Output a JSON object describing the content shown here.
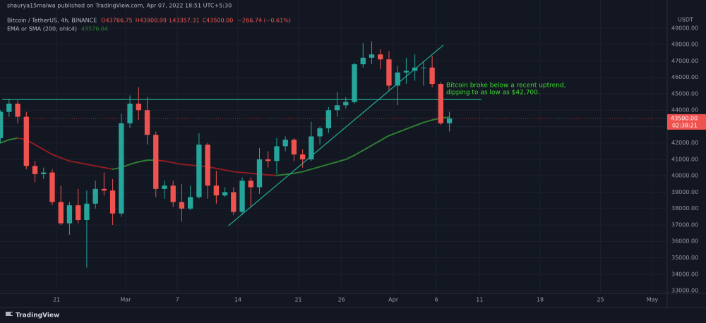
{
  "header": {
    "published": "shaurya15malwa published on TradingView.com, Apr 07, 2022 18:51 UTC+5:30",
    "symbol": "Bitcoin / TetherUS, 4h, BINANCE",
    "ohlc_labels": [
      "O43766.75",
      "H43900.99",
      "L43357.31",
      "C43500.00"
    ],
    "change": "−266.74 (−0.61%)"
  },
  "footer": {
    "brand": "TradingView"
  },
  "chart_data": {
    "type": "candlestick",
    "x": [
      45.5,
      46.5,
      47.5,
      48.5,
      49.5,
      50.5,
      51.5,
      52.5,
      53.5,
      54.5,
      55.5,
      56.5,
      57.5,
      58.5,
      59.5,
      60.5,
      61.5,
      62.5,
      63.5,
      64.5,
      65.5,
      66.5,
      67.5,
      68.5,
      69.5,
      70.5,
      71.5,
      72.5,
      73.5,
      74.5,
      75.5,
      76.5,
      77.5,
      78.5,
      79.5,
      80.5,
      81.5,
      82.5,
      83.5,
      84.5,
      85.5,
      86.5,
      87.5,
      88.5,
      89.5,
      90.5,
      91.5,
      92.5,
      93.5,
      94.5,
      95.5,
      96.5,
      97.5
    ],
    "open": [
      42300,
      43900,
      44400,
      43600,
      40600,
      40100,
      40200,
      38400,
      37100,
      38200,
      37300,
      38300,
      39200,
      39100,
      37700,
      43200,
      44400,
      44000,
      42500,
      39200,
      39400,
      38400,
      38000,
      38700,
      41900,
      39400,
      38800,
      39000,
      37800,
      39700,
      39300,
      41000,
      40900,
      41800,
      42200,
      41300,
      41000,
      42400,
      42900,
      44000,
      44300,
      44500,
      46800,
      47200,
      47400,
      47100,
      45500,
      46300,
      46400,
      46600,
      46600,
      45600,
      43200
    ],
    "high": [
      44000,
      44700,
      44600,
      43900,
      40900,
      40500,
      40400,
      39400,
      38400,
      39200,
      39100,
      39700,
      40200,
      39800,
      43800,
      44900,
      45400,
      44800,
      42700,
      39700,
      39700,
      39500,
      39400,
      42600,
      42000,
      40300,
      39300,
      39300,
      39900,
      39900,
      41700,
      41500,
      42300,
      42400,
      42300,
      41600,
      43300,
      43000,
      44200,
      45100,
      44800,
      46900,
      48100,
      48200,
      47700,
      47600,
      46700,
      47200,
      47400,
      47000,
      47300,
      45700,
      43900
    ],
    "low": [
      42000,
      43600,
      43200,
      40400,
      39600,
      39800,
      38200,
      37000,
      36400,
      37100,
      34400,
      38000,
      38800,
      37000,
      37500,
      42900,
      43400,
      41900,
      38700,
      38600,
      38100,
      37200,
      37900,
      38600,
      38600,
      38300,
      38700,
      37600,
      37600,
      38100,
      38900,
      40500,
      40100,
      41500,
      40900,
      40500,
      40900,
      41900,
      42600,
      43600,
      44100,
      44400,
      46600,
      46800,
      46500,
      45200,
      44300,
      45600,
      45800,
      45500,
      45400,
      43100,
      42700
    ],
    "close": [
      43900,
      44400,
      43600,
      40600,
      40100,
      40200,
      38400,
      37100,
      38200,
      37300,
      38300,
      39200,
      39100,
      37700,
      43200,
      44400,
      44000,
      42500,
      39200,
      39400,
      38400,
      38000,
      38700,
      41900,
      39400,
      38800,
      39000,
      37800,
      39700,
      39300,
      41000,
      40900,
      41800,
      42200,
      41300,
      41000,
      42400,
      42900,
      44000,
      44300,
      44500,
      46800,
      47200,
      47400,
      47100,
      45500,
      46300,
      46400,
      46600,
      46600,
      45600,
      43200,
      43500
    ],
    "up_color": "#26a69a",
    "down_color": "#ef5350",
    "ma": {
      "name": "EMA or SMA (200, ohlc4)",
      "value_label": "43576.64",
      "up_color": "#2e7d32",
      "down_color": "#8e1c22",
      "values": [
        42000,
        42200,
        42300,
        42200,
        41900,
        41600,
        41300,
        41100,
        40900,
        40800,
        40700,
        40600,
        40500,
        40400,
        40500,
        40700,
        40850,
        40950,
        40950,
        40900,
        40800,
        40700,
        40650,
        40600,
        40550,
        40450,
        40350,
        40250,
        40200,
        40150,
        40100,
        40050,
        40020,
        40080,
        40150,
        40250,
        40400,
        40550,
        40700,
        40850,
        41000,
        41250,
        41550,
        41850,
        42150,
        42450,
        42650,
        42850,
        43050,
        43250,
        43400,
        43520,
        43580
      ]
    },
    "hline": {
      "value": 44650,
      "x": [
        45.7,
        101.2
      ],
      "color": "#22ab94"
    },
    "trendline": {
      "x": [
        71.9,
        96.8
      ],
      "y": [
        36950,
        47970
      ],
      "color": "#22ab94"
    },
    "annotation": {
      "lines": [
        "Bitcoin broke below a recent uptrend,",
        "dipping to as low as $42,700."
      ],
      "color": "#3ddc2f"
    },
    "last_price": {
      "value": 43500,
      "label": "43500.00",
      "countdown": "02:38:21",
      "color": "#ef5350"
    },
    "y_unit": "USDT",
    "grid": true,
    "xlim": [
      45.45,
      122.72
    ],
    "ylim": [
      32828,
      50720
    ],
    "xticks": [
      {
        "value": 52,
        "label": "21"
      },
      {
        "value": 60,
        "label": "Mar"
      },
      {
        "value": 66,
        "label": "7"
      },
      {
        "value": 73,
        "label": "14"
      },
      {
        "value": 80,
        "label": "21"
      },
      {
        "value": 85,
        "label": "26"
      },
      {
        "value": 91,
        "label": "Apr"
      },
      {
        "value": 96,
        "label": "6"
      },
      {
        "value": 101,
        "label": "11"
      },
      {
        "value": 108,
        "label": "18"
      },
      {
        "value": 115,
        "label": "25"
      },
      {
        "value": 121,
        "label": "May"
      }
    ],
    "yticks": [
      {
        "value": 33000,
        "label": "33000.00"
      },
      {
        "value": 34000,
        "label": "34000.00"
      },
      {
        "value": 35000,
        "label": "35000.00"
      },
      {
        "value": 36000,
        "label": "36000.00"
      },
      {
        "value": 37000,
        "label": "37000.00"
      },
      {
        "value": 38000,
        "label": "38000.00"
      },
      {
        "value": 39000,
        "label": "39000.00"
      },
      {
        "value": 40000,
        "label": "40000.00"
      },
      {
        "value": 41000,
        "label": "41000.00"
      },
      {
        "value": 42000,
        "label": "42000.00"
      },
      {
        "value": 43000,
        "label": "43000.00"
      },
      {
        "value": 44000,
        "label": "44000.00"
      },
      {
        "value": 45000,
        "label": "45000.00"
      },
      {
        "value": 46000,
        "label": "46000.00"
      },
      {
        "value": 47000,
        "label": "47000.00"
      },
      {
        "value": 48000,
        "label": "48000.00"
      },
      {
        "value": 49000,
        "label": "49000.00"
      }
    ]
  }
}
